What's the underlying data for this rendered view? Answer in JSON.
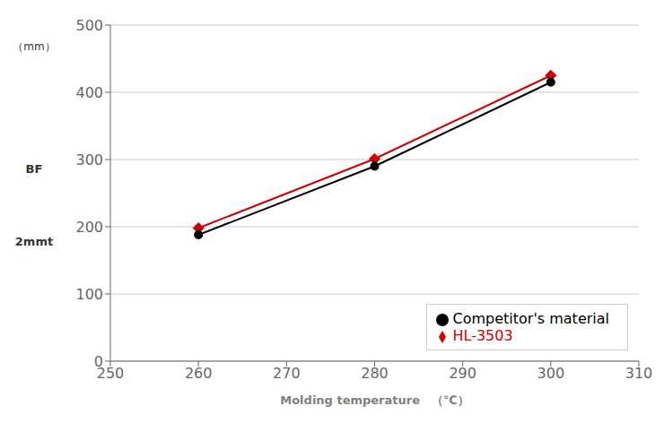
{
  "chart_data": {
    "type": "line",
    "xlabel": "Molding temperature　（℃）",
    "ylabel": [
      "（mm）",
      "BF",
      "2mmt"
    ],
    "x": [
      260,
      280,
      300
    ],
    "series": [
      {
        "name": "HL-3503",
        "color": "#cc0000",
        "marker": "diamond",
        "values": [
          198,
          301,
          425
        ]
      },
      {
        "name": "Competitor's material",
        "color": "#000000",
        "marker": "circle",
        "values": [
          188,
          290,
          415
        ]
      }
    ],
    "xlim": [
      250,
      310
    ],
    "ylim": [
      0,
      500
    ],
    "xticks": [
      250,
      260,
      270,
      280,
      290,
      300,
      310
    ],
    "yticks": [
      0,
      100,
      200,
      300,
      400,
      500
    ],
    "grid": true,
    "legend": "lower right"
  }
}
